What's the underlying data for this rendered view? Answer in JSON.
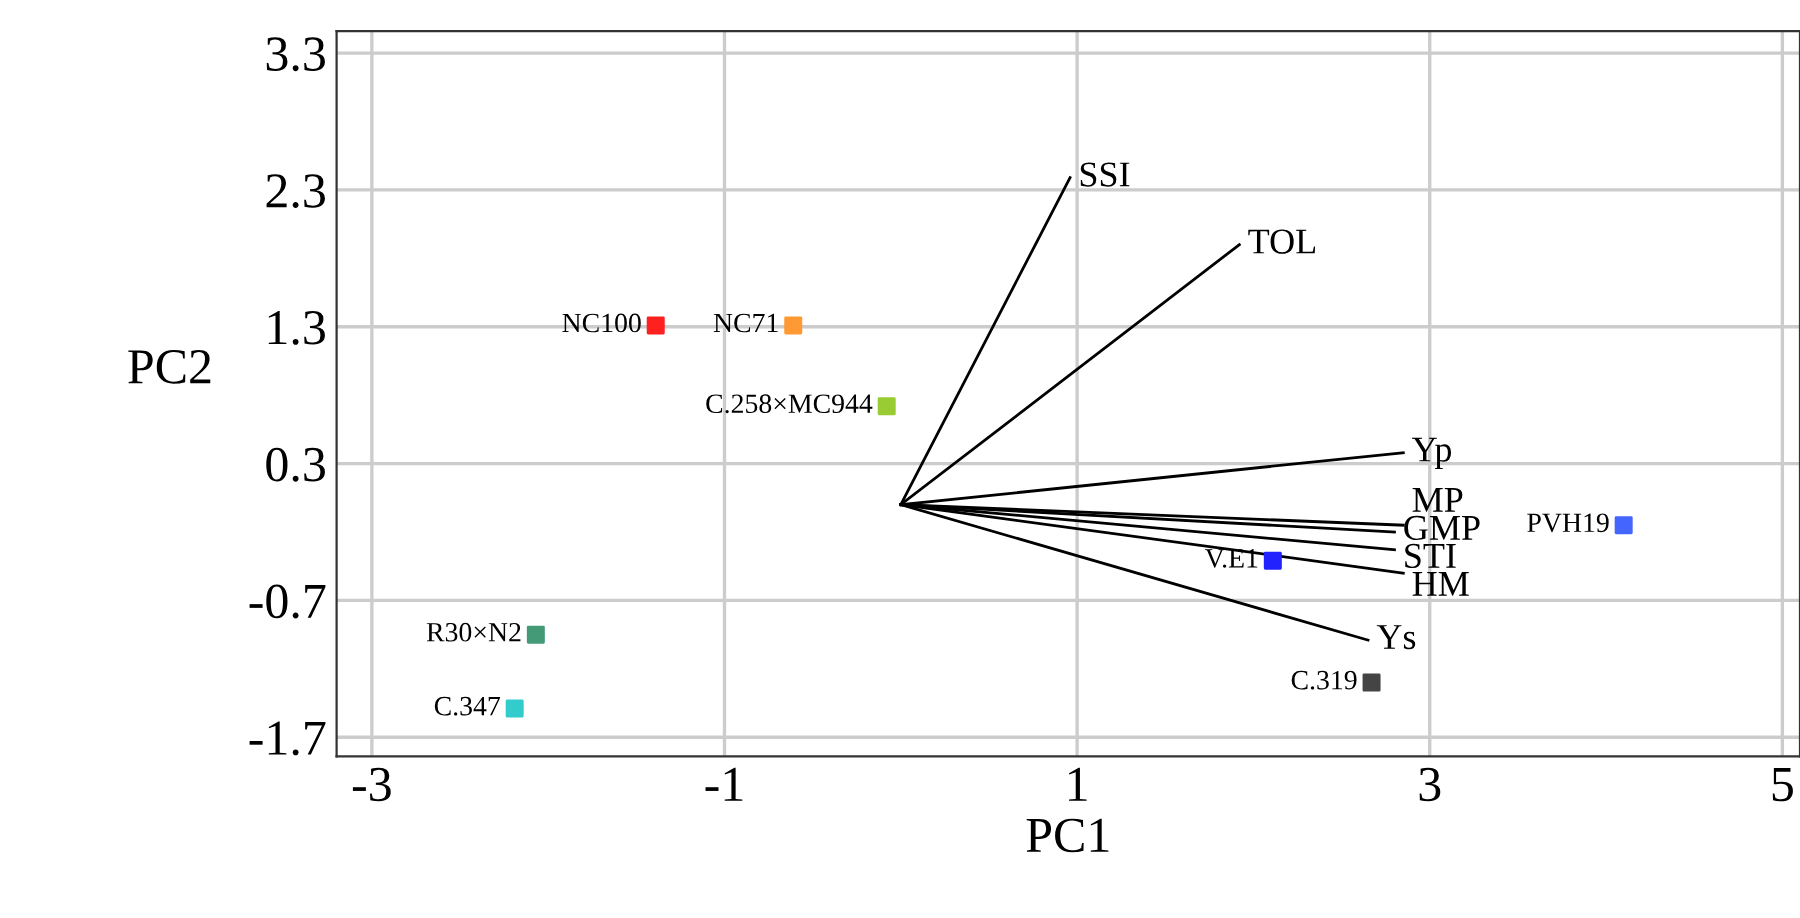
{
  "chart_data": {
    "type": "scatter",
    "xlabel": "PC1",
    "ylabel": "PC2",
    "xlim": [
      -3.2,
      5.1
    ],
    "ylim": [
      -1.84,
      3.46
    ],
    "xticks": [
      -3,
      -1,
      1,
      3,
      5
    ],
    "yticks": [
      -1.7,
      -0.7,
      0.3,
      1.3,
      2.3,
      3.3
    ],
    "grid": true,
    "series": [
      {
        "type": "line",
        "name": "SSI",
        "color": "#000000",
        "x": [
          0,
          0.96
        ],
        "values": [
          0,
          2.39
        ]
      },
      {
        "type": "line",
        "name": "TOL",
        "color": "#000000",
        "x": [
          0,
          1.92
        ],
        "values": [
          0,
          1.9
        ]
      },
      {
        "type": "line",
        "name": "Yp",
        "color": "#000000",
        "x": [
          0,
          2.85
        ],
        "values": [
          0,
          0.38
        ]
      },
      {
        "type": "line",
        "name": "MP",
        "color": "#000000",
        "x": [
          0,
          2.85
        ],
        "values": [
          0,
          -0.15
        ]
      },
      {
        "type": "line",
        "name": "GMP",
        "color": "#000000",
        "x": [
          0,
          2.8
        ],
        "values": [
          0,
          -0.2
        ]
      },
      {
        "type": "line",
        "name": "STI",
        "color": "#000000",
        "x": [
          0,
          2.8
        ],
        "values": [
          0,
          -0.33
        ]
      },
      {
        "type": "line",
        "name": "HM",
        "color": "#000000",
        "x": [
          0,
          2.85
        ],
        "values": [
          0,
          -0.5
        ]
      },
      {
        "type": "line",
        "name": "Ys",
        "color": "#000000",
        "x": [
          0,
          2.65
        ],
        "values": [
          0,
          -0.99
        ]
      },
      {
        "name": "NC100",
        "color": "#ff2020",
        "marker": "square",
        "x": [
          -1.39
        ],
        "values": [
          1.31
        ]
      },
      {
        "name": "NC71",
        "color": "#ff9933",
        "marker": "square",
        "x": [
          -0.61
        ],
        "values": [
          1.31
        ]
      },
      {
        "name": "C.258×MC944",
        "color": "#99cc33",
        "marker": "square",
        "x": [
          -0.08
        ],
        "values": [
          0.72
        ]
      },
      {
        "name": "R30×N2",
        "color": "#449977",
        "marker": "square",
        "x": [
          -2.07
        ],
        "values": [
          -0.95
        ]
      },
      {
        "name": "C.347",
        "color": "#33cccc",
        "marker": "square",
        "x": [
          -2.19
        ],
        "values": [
          -1.49
        ]
      },
      {
        "name": "V.E1",
        "color": "#2222ff",
        "marker": "square",
        "x": [
          2.11
        ],
        "values": [
          -0.41
        ]
      },
      {
        "name": "PVH19",
        "color": "#4466ff",
        "marker": "square",
        "x": [
          4.1
        ],
        "values": [
          -0.15
        ]
      },
      {
        "name": "C.319",
        "color": "#444444",
        "marker": "square",
        "x": [
          2.67
        ],
        "values": [
          -1.3
        ]
      }
    ]
  }
}
